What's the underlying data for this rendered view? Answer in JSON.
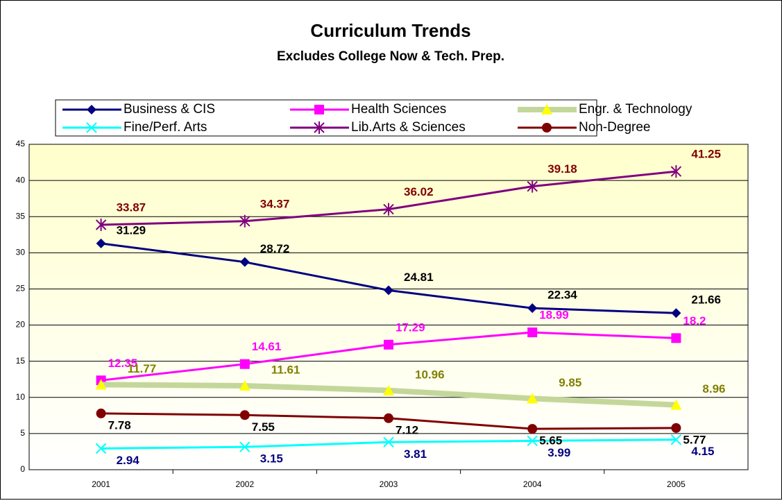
{
  "chart_data": {
    "type": "line",
    "title": "Curriculum Trends",
    "subtitle": "Excludes College Now & Tech. Prep.",
    "categories": [
      "2001",
      "2002",
      "2003",
      "2004",
      "2005"
    ],
    "series": [
      {
        "name": "Business & CIS",
        "color": "#000080",
        "marker": "diamond",
        "label_color": "#000000",
        "values": [
          31.29,
          28.72,
          24.81,
          22.34,
          21.66
        ]
      },
      {
        "name": "Health Sciences",
        "color": "#ff00ff",
        "marker": "square",
        "label_color": "#ff00ff",
        "values": [
          12.35,
          14.61,
          17.29,
          18.99,
          18.2
        ]
      },
      {
        "name": "Engr. & Technology",
        "color": "#c4d79b",
        "marker": "triangle",
        "marker_color": "#ffff00",
        "label_color": "#808000",
        "values": [
          11.77,
          11.61,
          10.96,
          9.85,
          8.96
        ]
      },
      {
        "name": "Fine/Perf. Arts",
        "color": "#00ffff",
        "marker": "x",
        "label_color": "#000080",
        "values": [
          2.94,
          3.15,
          3.81,
          3.99,
          4.15
        ]
      },
      {
        "name": "Lib.Arts & Sciences",
        "color": "#800080",
        "marker": "star",
        "label_color": "#800000",
        "values": [
          33.87,
          34.37,
          36.02,
          39.18,
          41.25
        ]
      },
      {
        "name": "Non-Degree",
        "color": "#800000",
        "marker": "circle",
        "label_color": "#000000",
        "values": [
          7.78,
          7.55,
          7.12,
          5.65,
          5.77
        ]
      }
    ],
    "ylim": [
      0,
      45
    ],
    "yticks": [
      0,
      5,
      10,
      15,
      20,
      25,
      30,
      35,
      40,
      45
    ],
    "grid": true
  }
}
